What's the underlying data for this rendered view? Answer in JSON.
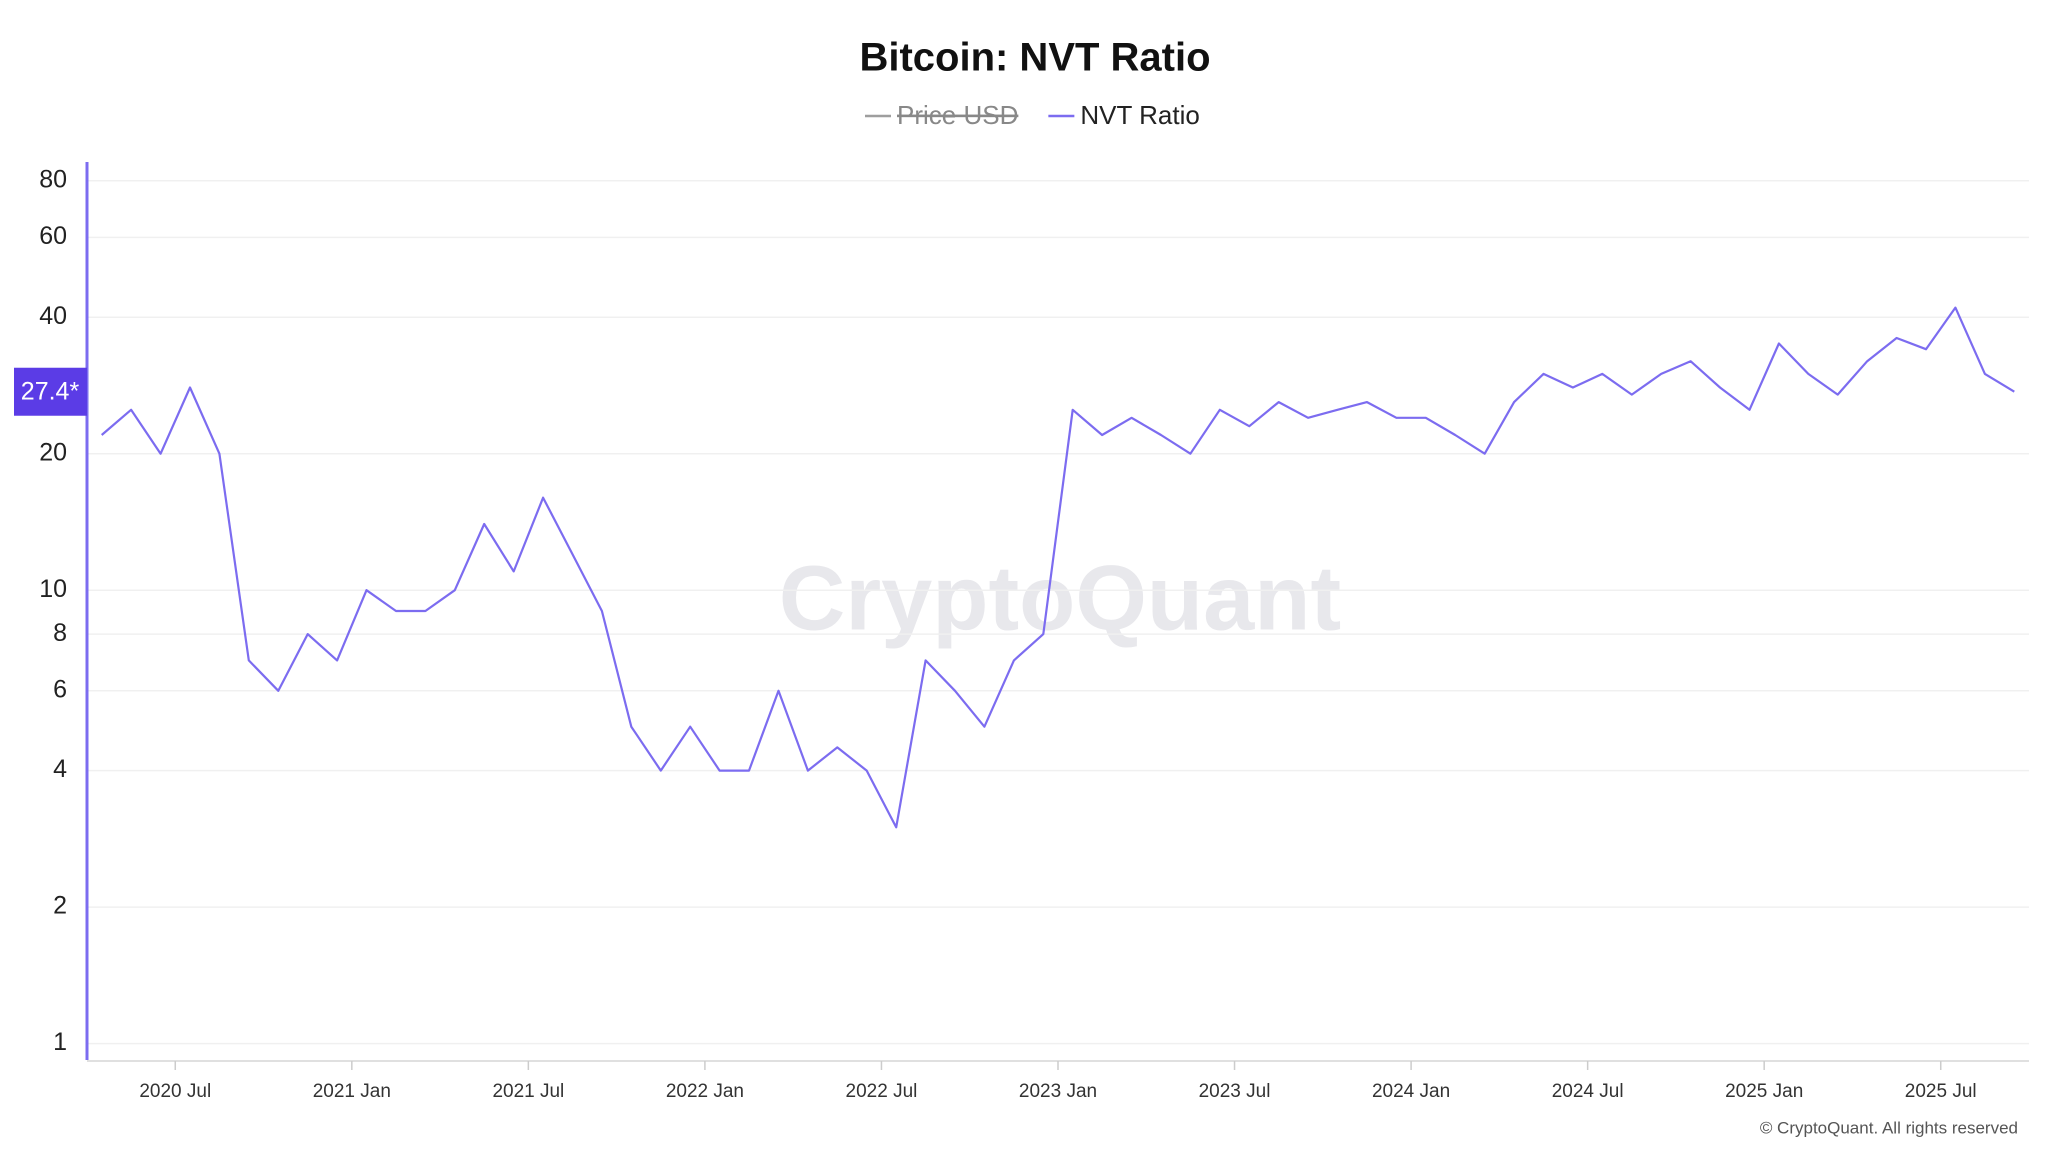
{
  "chart_data": {
    "type": "line",
    "title": "Bitcoin: NVT Ratio",
    "legend": [
      {
        "name": "Price USD",
        "color": "#9e9e9e",
        "hidden": true
      },
      {
        "name": "NVT Ratio",
        "color": "#7c6cf0"
      }
    ],
    "x": [
      "2020-04",
      "2020-05",
      "2020-06",
      "2020-07",
      "2020-08",
      "2020-09",
      "2020-10",
      "2020-11",
      "2020-12",
      "2021-01",
      "2021-02",
      "2021-03",
      "2021-04",
      "2021-05",
      "2021-06",
      "2021-07",
      "2021-08",
      "2021-09",
      "2021-10",
      "2021-11",
      "2021-12",
      "2022-01",
      "2022-02",
      "2022-03",
      "2022-04",
      "2022-05",
      "2022-06",
      "2022-07",
      "2022-08",
      "2022-09",
      "2022-10",
      "2022-11",
      "2022-12",
      "2023-01",
      "2023-02",
      "2023-03",
      "2023-04",
      "2023-05",
      "2023-06",
      "2023-07",
      "2023-08",
      "2023-09",
      "2023-10",
      "2023-11",
      "2023-12",
      "2024-01",
      "2024-02",
      "2024-03",
      "2024-04",
      "2024-05",
      "2024-06",
      "2024-07",
      "2024-08",
      "2024-09",
      "2024-10",
      "2024-11",
      "2024-12",
      "2025-01",
      "2025-02",
      "2025-03",
      "2025-04",
      "2025-05",
      "2025-06",
      "2025-07",
      "2025-08",
      "2025-09"
    ],
    "series": [
      {
        "name": "NVT Ratio",
        "color": "#7c6cf0",
        "values": [
          22,
          25,
          20,
          28,
          20,
          7,
          6,
          8,
          7,
          10,
          9,
          9,
          10,
          14,
          11,
          16,
          12,
          9,
          5,
          4,
          5,
          4,
          4,
          6,
          4,
          4.5,
          4,
          3,
          7,
          6,
          5,
          7,
          8,
          25,
          22,
          24,
          22,
          20,
          25,
          23,
          26,
          24,
          25,
          26,
          24,
          24,
          22,
          20,
          26,
          30,
          28,
          30,
          27,
          30,
          32,
          28,
          25,
          35,
          30,
          27,
          32,
          36,
          34,
          42,
          30,
          27.4
        ]
      }
    ],
    "xlim": [
      "2020-04",
      "2025-10"
    ],
    "xticks": [
      {
        "value": "2020-07",
        "label": "2020 Jul"
      },
      {
        "value": "2021-01",
        "label": "2021 Jan"
      },
      {
        "value": "2021-07",
        "label": "2021 Jul"
      },
      {
        "value": "2022-01",
        "label": "2022 Jan"
      },
      {
        "value": "2022-07",
        "label": "2022 Jul"
      },
      {
        "value": "2023-01",
        "label": "2023 Jan"
      },
      {
        "value": "2023-07",
        "label": "2023 Jul"
      },
      {
        "value": "2024-01",
        "label": "2024 Jan"
      },
      {
        "value": "2024-07",
        "label": "2024 Jul"
      },
      {
        "value": "2025-01",
        "label": "2025 Jan"
      },
      {
        "value": "2025-07",
        "label": "2025 Jul"
      }
    ],
    "ylim": [
      0.92,
      88
    ],
    "yticks": [
      1,
      2,
      4,
      6,
      8,
      10,
      20,
      40,
      60,
      80
    ],
    "log_scale": true,
    "grid": true,
    "current_value": {
      "value": 27.4,
      "label": "27.4*"
    },
    "watermark": "CryptoQuant",
    "footer": "© CryptoQuant. All rights reserved"
  }
}
